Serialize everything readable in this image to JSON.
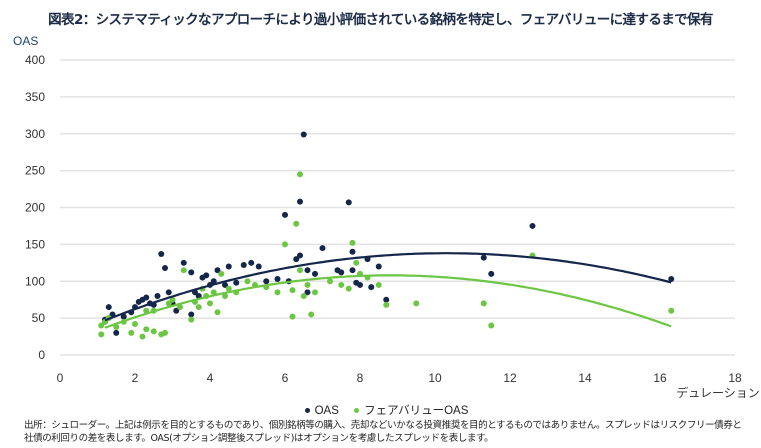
{
  "title": "図表2：システマティックなアプローチにより過小評価されている銘柄を特定し、フェアバリューに達するまで保有",
  "footer": {
    "line1": "出所：シュローダー。上記は例示を目的とするものであり、個別銘柄等の購入、売却などいかなる投資推奨を目的とするものではありません。スプレッドはリスクフリー債券と",
    "line2": "社債の利回りの差を表します。OAS(オプション調整後スプレッド)はオプションを考慮したスプレッドを表します。"
  },
  "chart_data": {
    "type": "scatter",
    "title": "",
    "xlabel": "デュレーション",
    "ylabel": "OAS",
    "xlim": [
      0,
      18
    ],
    "ylim": [
      0,
      400
    ],
    "xticks": [
      "0",
      "2",
      "4",
      "6",
      "8",
      "10",
      "12",
      "14",
      "16",
      "18"
    ],
    "yticks": [
      "0",
      "50",
      "100",
      "150",
      "200",
      "250",
      "300",
      "350",
      "400"
    ],
    "grid": "horizontal",
    "legend_placement": "bottom",
    "series": [
      {
        "name": "OAS",
        "color": "#14264a",
        "trendline": "quadratic",
        "points": [
          [
            1.2,
            48
          ],
          [
            1.2,
            45
          ],
          [
            1.3,
            65
          ],
          [
            1.4,
            55
          ],
          [
            1.5,
            30
          ],
          [
            1.7,
            52
          ],
          [
            1.9,
            58
          ],
          [
            2.0,
            65
          ],
          [
            2.1,
            72
          ],
          [
            2.2,
            75
          ],
          [
            2.3,
            78
          ],
          [
            2.4,
            70
          ],
          [
            2.5,
            68
          ],
          [
            2.6,
            80
          ],
          [
            2.7,
            137
          ],
          [
            2.8,
            118
          ],
          [
            2.9,
            85
          ],
          [
            3.0,
            70
          ],
          [
            3.1,
            60
          ],
          [
            3.3,
            125
          ],
          [
            3.5,
            55
          ],
          [
            3.5,
            112
          ],
          [
            3.6,
            85
          ],
          [
            3.7,
            80
          ],
          [
            3.8,
            105
          ],
          [
            3.9,
            108
          ],
          [
            4.0,
            95
          ],
          [
            4.1,
            100
          ],
          [
            4.2,
            115
          ],
          [
            4.4,
            95
          ],
          [
            4.5,
            120
          ],
          [
            4.7,
            98
          ],
          [
            4.9,
            122
          ],
          [
            5.1,
            125
          ],
          [
            5.3,
            120
          ],
          [
            5.5,
            100
          ],
          [
            5.8,
            103
          ],
          [
            6.0,
            190
          ],
          [
            6.1,
            100
          ],
          [
            6.3,
            130
          ],
          [
            6.4,
            208
          ],
          [
            6.4,
            135
          ],
          [
            6.5,
            299
          ],
          [
            6.6,
            85
          ],
          [
            6.6,
            115
          ],
          [
            6.8,
            110
          ],
          [
            7.0,
            145
          ],
          [
            7.4,
            115
          ],
          [
            7.5,
            112
          ],
          [
            7.7,
            207
          ],
          [
            7.8,
            140
          ],
          [
            7.8,
            115
          ],
          [
            7.9,
            98
          ],
          [
            8.0,
            95
          ],
          [
            8.2,
            130
          ],
          [
            8.3,
            92
          ],
          [
            8.5,
            120
          ],
          [
            8.7,
            75
          ],
          [
            11.3,
            132
          ],
          [
            11.5,
            110
          ],
          [
            12.6,
            175
          ],
          [
            16.3,
            103
          ]
        ]
      },
      {
        "name": "フェアバリューOAS",
        "color": "#6cc644",
        "trendline": "quadratic",
        "points": [
          [
            1.1,
            28
          ],
          [
            1.1,
            40
          ],
          [
            1.2,
            45
          ],
          [
            1.3,
            50
          ],
          [
            1.5,
            38
          ],
          [
            1.7,
            45
          ],
          [
            1.9,
            30
          ],
          [
            2.0,
            42
          ],
          [
            2.2,
            25
          ],
          [
            2.3,
            35
          ],
          [
            2.3,
            60
          ],
          [
            2.5,
            32
          ],
          [
            2.5,
            60
          ],
          [
            2.7,
            28
          ],
          [
            2.8,
            30
          ],
          [
            2.9,
            70
          ],
          [
            3.0,
            75
          ],
          [
            3.2,
            65
          ],
          [
            3.3,
            115
          ],
          [
            3.5,
            48
          ],
          [
            3.6,
            72
          ],
          [
            3.7,
            65
          ],
          [
            3.8,
            90
          ],
          [
            3.9,
            80
          ],
          [
            4.0,
            70
          ],
          [
            4.1,
            85
          ],
          [
            4.2,
            58
          ],
          [
            4.3,
            110
          ],
          [
            4.4,
            80
          ],
          [
            4.5,
            90
          ],
          [
            4.7,
            85
          ],
          [
            5.0,
            100
          ],
          [
            5.2,
            95
          ],
          [
            5.5,
            92
          ],
          [
            5.8,
            85
          ],
          [
            6.0,
            150
          ],
          [
            6.2,
            52
          ],
          [
            6.2,
            88
          ],
          [
            6.3,
            178
          ],
          [
            6.4,
            115
          ],
          [
            6.4,
            245
          ],
          [
            6.5,
            80
          ],
          [
            6.6,
            95
          ],
          [
            6.7,
            55
          ],
          [
            6.8,
            85
          ],
          [
            7.2,
            100
          ],
          [
            7.5,
            95
          ],
          [
            7.7,
            90
          ],
          [
            7.8,
            152
          ],
          [
            7.9,
            125
          ],
          [
            8.0,
            110
          ],
          [
            8.2,
            105
          ],
          [
            8.5,
            95
          ],
          [
            8.7,
            68
          ],
          [
            9.5,
            70
          ],
          [
            11.3,
            70
          ],
          [
            11.5,
            40
          ],
          [
            12.6,
            135
          ],
          [
            16.3,
            60
          ]
        ]
      }
    ]
  }
}
